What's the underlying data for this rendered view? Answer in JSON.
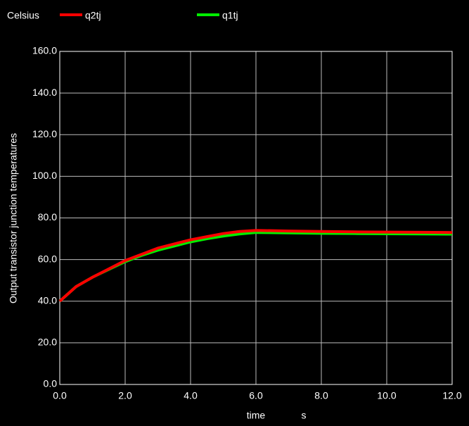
{
  "chart_data": {
    "type": "line",
    "y_label": "Output transistor junction temperatures",
    "y_unit": "Celsius",
    "x_label": "time",
    "x_unit": "s",
    "x": [
      0,
      0.5,
      1,
      1.5,
      2,
      2.5,
      3,
      3.5,
      4,
      4.5,
      5,
      5.5,
      6,
      7,
      8,
      9,
      10,
      11,
      12
    ],
    "series": [
      {
        "name": "q2tj",
        "color": "#ff0000",
        "values": [
          40,
          47,
          51.5,
          55.5,
          59.5,
          62.5,
          65.5,
          67.5,
          69.5,
          71,
          72.5,
          73.5,
          74,
          73.7,
          73.5,
          73.3,
          73.2,
          73.1,
          73
        ]
      },
      {
        "name": "q1tj",
        "color": "#00ee00",
        "values": [
          40,
          47,
          51.5,
          55.3,
          59,
          62,
          64.5,
          66.5,
          68.5,
          70,
          71.3,
          72.3,
          73,
          72.8,
          72.6,
          72.5,
          72.4,
          72.3,
          72.2
        ]
      }
    ],
    "xlim": [
      0,
      12
    ],
    "xticks": [
      {
        "value": 0,
        "label": "0.0"
      },
      {
        "value": 2,
        "label": "2.0"
      },
      {
        "value": 4,
        "label": "4.0"
      },
      {
        "value": 6,
        "label": "6.0"
      },
      {
        "value": 8,
        "label": "8.0"
      },
      {
        "value": 10,
        "label": "10.0"
      },
      {
        "value": 12,
        "label": "12.0"
      }
    ],
    "ylim": [
      0,
      160
    ],
    "yticks": [
      {
        "value": 0,
        "label": "0.0"
      },
      {
        "value": 20,
        "label": "20.0"
      },
      {
        "value": 40,
        "label": "40.0"
      },
      {
        "value": 60,
        "label": "60.0"
      },
      {
        "value": 80,
        "label": "80.0"
      },
      {
        "value": 100,
        "label": "100.0"
      },
      {
        "value": 120,
        "label": "120.0"
      },
      {
        "value": 140,
        "label": "140.0"
      },
      {
        "value": 160,
        "label": "160.0"
      }
    ],
    "grid": true
  }
}
